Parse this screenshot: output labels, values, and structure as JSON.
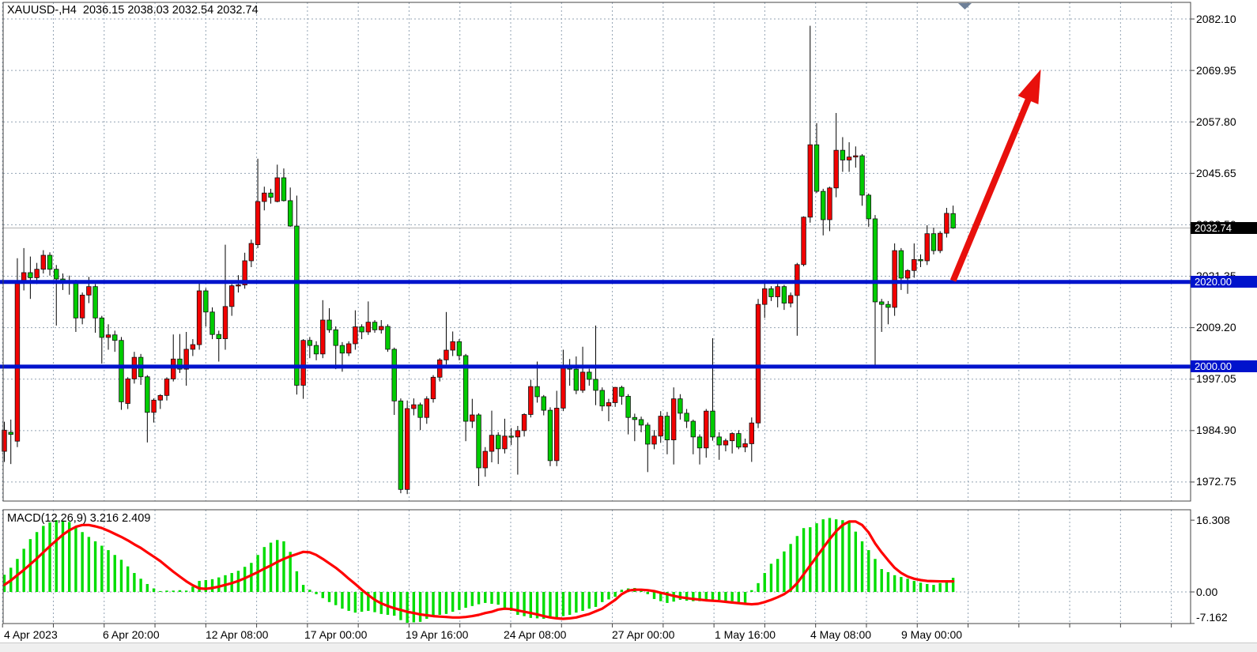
{
  "window": {
    "title_symbol": "XAUUSD-,H4",
    "title_ohlc": "2036.15 2038.03 2032.54 2032.74"
  },
  "colors": {
    "bull_candle": "#f20000",
    "bear_candle": "#00cc00",
    "wick": "#000000",
    "grid": "#93a3b3",
    "support_line": "#0013cc",
    "current_price_line": "#b4b4b4",
    "macd_histogram": "#00dd00",
    "macd_signal": "#ff0000",
    "arrow": "#e8100c",
    "shift_marker": "#6e8098"
  },
  "chart_data": {
    "type": "candlestick",
    "symbol": "XAUUSD-",
    "timeframe": "H4",
    "ohlc_readout": {
      "open": "2036.15",
      "high": "2038.03",
      "low": "2032.54",
      "close": "2032.74"
    },
    "current_price_label": "2032.74",
    "current_price": 2032.74,
    "price_axis": {
      "tick_values": [
        2082.1,
        2069.95,
        2057.8,
        2045.65,
        2033.5,
        2021.35,
        2009.2,
        1997.05,
        1984.9,
        1972.75
      ],
      "tick_labels": [
        "2082.10",
        "2069.95",
        "2057.80",
        "2045.65",
        "2033.50",
        "2021.35",
        "2009.20",
        "1997.05",
        "1984.90",
        "1972.75"
      ]
    },
    "time_axis": {
      "tick_labels": [
        "4 Apr 2023",
        "6 Apr 20:00",
        "12 Apr 08:00",
        "17 Apr 00:00",
        "19 Apr 16:00",
        "24 Apr 08:00",
        "27 Apr 00:00",
        "1 May 16:00",
        "4 May 08:00",
        "9 May 00:00"
      ]
    },
    "horizontal_lines": [
      {
        "price": 2020.0,
        "label": "2020.00"
      },
      {
        "price": 2000.0,
        "label": "2000.00"
      }
    ],
    "trend_arrow": {
      "start_index": 146,
      "start_price": 2020.3,
      "end_index": 159.5,
      "end_price": 2070.2
    },
    "candles": [
      [
        1980,
        1987,
        1977.5,
        1985
      ],
      [
        1984.5,
        1987.5,
        1977,
        1984
      ],
      [
        1982.4,
        2025.6,
        1981,
        2020.3
      ],
      [
        2020.3,
        2028,
        2018,
        2022.2
      ],
      [
        2022.2,
        2026,
        2016,
        2021
      ],
      [
        2021,
        2024.5,
        2019.5,
        2023
      ],
      [
        2023,
        2027.5,
        2022,
        2026.3
      ],
      [
        2026.3,
        2027,
        2021.5,
        2023
      ],
      [
        2023,
        2024,
        2009.7,
        2020.7
      ],
      [
        2020.7,
        2022,
        2018.1,
        2020.2
      ],
      [
        2020.2,
        2021.5,
        2017,
        2020
      ],
      [
        2020,
        2020.5,
        2008.2,
        2011.5
      ],
      [
        2011.5,
        2017.5,
        2010,
        2016.9
      ],
      [
        2016.9,
        2021.2,
        2015,
        2018.9
      ],
      [
        2018.9,
        2019.5,
        2008,
        2011.5
      ],
      [
        2011.5,
        2012,
        2000.7,
        2006.9
      ],
      [
        2006.9,
        2010,
        2004,
        2007.5
      ],
      [
        2007.5,
        2008.5,
        2003.5,
        2006.2
      ],
      [
        2006.2,
        2007,
        1989.8,
        1991.7
      ],
      [
        1991.3,
        1997.5,
        1990,
        1997.1
      ],
      [
        1997.1,
        2003.5,
        1996,
        2002.2
      ],
      [
        2002.2,
        2003,
        1995.7,
        1997.6
      ],
      [
        1997.6,
        1998,
        1982.1,
        1989.2
      ],
      [
        1989.2,
        1992.5,
        1986.8,
        1992.1
      ],
      [
        1992.1,
        1993.5,
        1990,
        1993.2
      ],
      [
        1993.2,
        1997.5,
        1992,
        1997.1
      ],
      [
        1997.1,
        2007.6,
        1996.5,
        2001.8
      ],
      [
        2001.8,
        2007.7,
        1998.5,
        1999.4
      ],
      [
        1999.4,
        2008.2,
        1995.5,
        2004.1
      ],
      [
        2004.1,
        2006.5,
        2002.5,
        2005.2
      ],
      [
        2005.2,
        2020.3,
        2004,
        2017.9
      ],
      [
        2017.9,
        2018.5,
        2009.5,
        2012.9
      ],
      [
        2012.9,
        2014,
        2006.5,
        2007.6
      ],
      [
        2007.6,
        2008.5,
        2001.2,
        2006.6
      ],
      [
        2006.6,
        2028.8,
        2004,
        2014.2
      ],
      [
        2014.2,
        2019.5,
        2012,
        2019.1
      ],
      [
        2019.1,
        2021.6,
        2017.5,
        2019.3
      ],
      [
        2019.3,
        2026.9,
        2018.4,
        2025
      ],
      [
        2025,
        2030,
        2023.5,
        2029.1
      ],
      [
        2028.8,
        2049.1,
        2028,
        2039
      ],
      [
        2039,
        2042.5,
        2036.9,
        2041
      ],
      [
        2041,
        2042,
        2038.5,
        2040
      ],
      [
        2039,
        2047.7,
        2038.8,
        2044.6
      ],
      [
        2044.6,
        2046.8,
        2039,
        2039.2
      ],
      [
        2039.2,
        2042.3,
        2033,
        2033.2
      ],
      [
        2033.2,
        2040.4,
        1993.4,
        1995.6
      ],
      [
        1995.6,
        2006.5,
        1992.4,
        2006.2
      ],
      [
        2006.2,
        2007,
        2002,
        2005
      ],
      [
        2005,
        2006,
        2001.5,
        2003
      ],
      [
        2003,
        2015.7,
        2002,
        2011
      ],
      [
        2011,
        2013.8,
        2008,
        2008.7
      ],
      [
        2008.7,
        2009.5,
        1999.4,
        2005
      ],
      [
        2005,
        2005.8,
        1998.8,
        2003.2
      ],
      [
        2003.2,
        2006,
        2002.5,
        2005.4
      ],
      [
        2005.4,
        2013.3,
        2004,
        2009.4
      ],
      [
        2009.4,
        2010,
        2006.5,
        2008.2
      ],
      [
        2008.2,
        2015.4,
        2007.5,
        2010.5
      ],
      [
        2010.5,
        2011,
        2008,
        2008.7
      ],
      [
        2008.7,
        2011,
        2007.8,
        2009.5
      ],
      [
        2009.5,
        2010,
        2003.5,
        2004.1
      ],
      [
        2004.1,
        2004.5,
        1988.6,
        1991.9
      ],
      [
        1991.9,
        1992.5,
        1970.1,
        1971
      ],
      [
        1971,
        1992,
        1969.9,
        1990.1
      ],
      [
        1990.1,
        1992.5,
        1988.5,
        1991
      ],
      [
        1991,
        1991.5,
        1985,
        1988
      ],
      [
        1988,
        1993,
        1986.5,
        1992.4
      ],
      [
        1992.4,
        1998,
        1991.5,
        1997.5
      ],
      [
        1997.5,
        2002,
        1996.5,
        2001.6
      ],
      [
        2001.6,
        2012.9,
        2000.5,
        2003.9
      ],
      [
        2003.9,
        2008.3,
        2002.5,
        2005.9
      ],
      [
        2005.9,
        2006.5,
        2001.5,
        2002.6
      ],
      [
        2002.6,
        2003,
        1982.4,
        1987.1
      ],
      [
        1987.1,
        1992.4,
        1985.5,
        1988.6
      ],
      [
        1988.6,
        1989,
        1971.8,
        1976.1
      ],
      [
        1976.1,
        1981,
        1974,
        1980
      ],
      [
        1980,
        1989.6,
        1977.4,
        1983.8
      ],
      [
        1983.8,
        1984.5,
        1977,
        1980.6
      ],
      [
        1980.6,
        1987.7,
        1979.5,
        1983.6
      ],
      [
        1983.6,
        1985.5,
        1981.5,
        1983.4
      ],
      [
        1983.4,
        1986,
        1974.5,
        1984.9
      ],
      [
        1984.9,
        1989,
        1983.5,
        1988.7
      ],
      [
        1988.7,
        1996.9,
        1988,
        1995.3
      ],
      [
        1995.3,
        2001.2,
        1991.5,
        1992.9
      ],
      [
        1992.9,
        1993.3,
        1988.5,
        1989.7
      ],
      [
        1989.7,
        1990.4,
        1976.5,
        1977.8
      ],
      [
        1977.8,
        1994.3,
        1976.5,
        1990.2
      ],
      [
        1990.2,
        2004,
        1989.5,
        1999.8
      ],
      [
        1999.8,
        2001.8,
        1995.5,
        1999.4
      ],
      [
        1999.4,
        2002.4,
        1993.5,
        1994.4
      ],
      [
        1994.4,
        2004.7,
        1993.8,
        1998.7
      ],
      [
        1998.7,
        1999.5,
        1995.5,
        1997
      ],
      [
        1997,
        2009.7,
        1990.9,
        1994.4
      ],
      [
        1994.4,
        1995.1,
        1989.5,
        1990.7
      ],
      [
        1990.7,
        1992.4,
        1987.1,
        1991.5
      ],
      [
        1991.5,
        1995.2,
        1990.5,
        1995.1
      ],
      [
        1995.1,
        1995.5,
        1991,
        1993
      ],
      [
        1993,
        1993.5,
        1984,
        1988
      ],
      [
        1988,
        1988.9,
        1982.4,
        1987.5
      ],
      [
        1987.5,
        1988.2,
        1984.5,
        1986.2
      ],
      [
        1986.2,
        1986.8,
        1975.1,
        1981.7
      ],
      [
        1981.7,
        1985,
        1980.5,
        1983.6
      ],
      [
        1983.6,
        1989.5,
        1982,
        1988.3
      ],
      [
        1988.3,
        1989.3,
        1979.3,
        1982.7
      ],
      [
        1982.7,
        1995.1,
        1976.9,
        1992.4
      ],
      [
        1992.4,
        1993.5,
        1987.5,
        1989
      ],
      [
        1989,
        1990,
        1985.5,
        1987.1
      ],
      [
        1987.1,
        1987.5,
        1979.3,
        1983.4
      ],
      [
        1983.4,
        1984,
        1976.9,
        1980.8
      ],
      [
        1980.8,
        1990,
        1978.5,
        1989.5
      ],
      [
        1989.5,
        2006.7,
        1982.5,
        1983.4
      ],
      [
        1983.4,
        1984.5,
        1978,
        1981.5
      ],
      [
        1981.5,
        1983,
        1980,
        1982.5
      ],
      [
        1982.5,
        1984.5,
        1979.5,
        1984.2
      ],
      [
        1984.2,
        1985,
        1980.5,
        1981
      ],
      [
        1981,
        1983,
        1979.8,
        1981.8
      ],
      [
        1981.8,
        1988,
        1977.5,
        1986.7
      ],
      [
        1986.7,
        2016,
        1985.5,
        2014.7
      ],
      [
        2014.7,
        2019.9,
        2011.5,
        2018.4
      ],
      [
        2018.4,
        2019,
        2015.5,
        2016.5
      ],
      [
        2016.5,
        2019.5,
        2014,
        2018.9
      ],
      [
        2018.9,
        2019.3,
        2013.4,
        2015
      ],
      [
        2015,
        2017.5,
        2014,
        2016.8
      ],
      [
        2016.8,
        2024.5,
        2007.3,
        2024.1
      ],
      [
        2024.1,
        2035.5,
        2023.7,
        2035.3
      ],
      [
        2035.3,
        2080.5,
        2034,
        2052.4
      ],
      [
        2052.4,
        2057.5,
        2041,
        2041.4
      ],
      [
        2041.4,
        2042,
        2031,
        2034.7
      ],
      [
        2034.7,
        2042.5,
        2032,
        2042.2
      ],
      [
        2042.2,
        2059.9,
        2040,
        2051.1
      ],
      [
        2051.1,
        2054.2,
        2046,
        2048.8
      ],
      [
        2048.8,
        2053,
        2046,
        2049.5
      ],
      [
        2049.5,
        2052,
        2047,
        2049.8
      ],
      [
        2049.8,
        2050.2,
        2038,
        2040.5
      ],
      [
        2040.5,
        2040.9,
        2033,
        2034.9
      ],
      [
        2034.9,
        2035.8,
        1999.9,
        2015.3
      ],
      [
        2015.3,
        2016,
        2008.2,
        2014.7
      ],
      [
        2014.7,
        2015.5,
        2010,
        2014
      ],
      [
        2014,
        2029.1,
        2012,
        2027.4
      ],
      [
        2027.4,
        2028,
        2018.1,
        2020.9
      ],
      [
        2020.9,
        2023,
        2017.2,
        2022.7
      ],
      [
        2022.7,
        2029.1,
        2021,
        2025.3
      ],
      [
        2025.3,
        2026.5,
        2023.5,
        2025
      ],
      [
        2025,
        2033.4,
        2024,
        2031.4
      ],
      [
        2031.4,
        2032.8,
        2026.5,
        2027.4
      ],
      [
        2027.4,
        2032,
        2026.8,
        2031.5
      ],
      [
        2031.5,
        2037.5,
        2030.5,
        2036.2
      ],
      [
        2036.15,
        2038.03,
        2032.54,
        2032.74
      ]
    ],
    "macd": {
      "label": "MACD(12,26,9)",
      "macd_value": "3.216",
      "signal_value": "2.409",
      "axis_tick_labels": [
        "16.308",
        "0.00",
        "-7.162"
      ],
      "axis_tick_values": [
        16.308,
        0.0,
        -7.162
      ],
      "histogram": [
        3.9,
        5.5,
        7.5,
        9.8,
        12.0,
        13.6,
        15.0,
        15.8,
        16.3,
        16.2,
        15.9,
        14.8,
        13.6,
        12.5,
        11.5,
        10.5,
        9.5,
        8.4,
        7.3,
        5.8,
        4.3,
        3.0,
        1.8,
        0.8,
        0.2,
        0.3,
        0.3,
        0.4,
        0.3,
        1.2,
        2.5,
        2.7,
        2.9,
        3.3,
        3.8,
        4.3,
        4.8,
        5.7,
        6.6,
        8.4,
        10.2,
        11.2,
        11.8,
        11.5,
        9.1,
        4.7,
        1.6,
        0.5,
        -0.5,
        -1.4,
        -2.3,
        -3.0,
        -3.8,
        -4.3,
        -4.7,
        -4.5,
        -4.3,
        -4.6,
        -5.0,
        -5.2,
        -5.4,
        -6.4,
        -7.0,
        -6.9,
        -6.8,
        -6.1,
        -5.5,
        -5.2,
        -5.0,
        -4.5,
        -4.1,
        -3.6,
        -3.2,
        -2.8,
        -2.5,
        -2.7,
        -2.9,
        -3.6,
        -4.3,
        -5.2,
        -5.5,
        -5.9,
        -6.0,
        -6.1,
        -6.0,
        -5.9,
        -5.5,
        -5.2,
        -4.7,
        -4.3,
        -3.8,
        -3.4,
        -2.3,
        -1.7,
        -1.1,
        0.5,
        0.8,
        0.9,
        0.6,
        -0.5,
        -1.6,
        -2.1,
        -2.5,
        -2.2,
        -1.8,
        -2.0,
        -2.1,
        -2.1,
        -2.1,
        -2.0,
        -1.8,
        -2.0,
        -2.1,
        -2.3,
        -2.5,
        0.4,
        2.0,
        4.3,
        6.4,
        7.5,
        9.2,
        10.9,
        12.7,
        14.5,
        14.7,
        15.6,
        16.5,
        16.8,
        16.5,
        16.3,
        15.9,
        13.7,
        11.5,
        9.5,
        7.5,
        5.2,
        4.5,
        3.8,
        3.4,
        3.0,
        2.5,
        2.1,
        1.8,
        1.6,
        2.0,
        2.5,
        3.216
      ],
      "signal": [
        1.6,
        2.6,
        3.8,
        5.0,
        6.3,
        7.6,
        9.0,
        10.4,
        11.7,
        13.0,
        14.0,
        14.8,
        15.2,
        15.2,
        14.9,
        14.5,
        13.9,
        13.2,
        12.5,
        11.7,
        10.8,
        10.0,
        9.0,
        8.0,
        7.0,
        5.8,
        4.6,
        3.5,
        2.4,
        1.5,
        0.8,
        0.7,
        0.9,
        1.2,
        1.6,
        2.0,
        2.5,
        3.1,
        3.8,
        4.5,
        5.3,
        6.0,
        6.8,
        7.5,
        8.1,
        8.6,
        9.1,
        9.0,
        8.4,
        7.5,
        6.5,
        5.5,
        4.3,
        3.0,
        1.8,
        0.5,
        -0.7,
        -1.8,
        -2.6,
        -3.2,
        -3.7,
        -4.1,
        -4.5,
        -4.8,
        -5.1,
        -5.3,
        -5.5,
        -5.6,
        -5.7,
        -5.8,
        -5.8,
        -5.7,
        -5.5,
        -5.2,
        -4.8,
        -4.5,
        -4.0,
        -3.8,
        -3.9,
        -4.2,
        -4.5,
        -4.8,
        -5.1,
        -5.5,
        -5.8,
        -6.0,
        -6.1,
        -6.0,
        -5.8,
        -5.4,
        -5.0,
        -4.4,
        -3.8,
        -2.8,
        -1.8,
        -0.5,
        0.3,
        0.5,
        0.5,
        0.4,
        0.2,
        -0.2,
        -0.5,
        -0.9,
        -1.2,
        -1.4,
        -1.6,
        -1.75,
        -1.9,
        -2.0,
        -2.1,
        -2.25,
        -2.4,
        -2.55,
        -2.7,
        -2.8,
        -2.7,
        -2.3,
        -1.8,
        -1.2,
        -0.5,
        0.5,
        2.0,
        4.0,
        6.0,
        8.0,
        10.0,
        12.0,
        13.8,
        15.2,
        16.0,
        16.0,
        15.2,
        13.5,
        11.0,
        9.0,
        7.2,
        5.5,
        4.3,
        3.5,
        3.0,
        2.7,
        2.5,
        2.45,
        2.4,
        2.4,
        2.409
      ]
    }
  }
}
